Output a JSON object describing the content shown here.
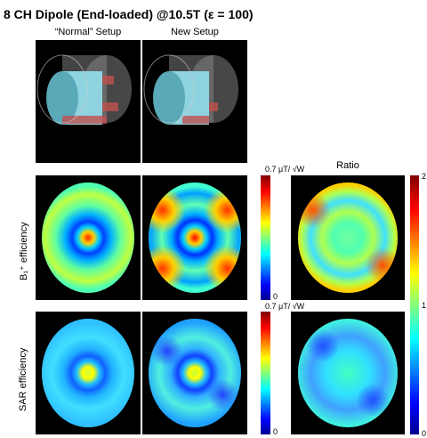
{
  "header": {
    "title": "8 CH Dipole (End-loaded) @10.5T (ε = 100)"
  },
  "columns": [
    "“Normal” Setup",
    "New Setup",
    "Ratio"
  ],
  "rows": [
    "B₁⁺ efficiency",
    "SAR efficiency"
  ],
  "colorbars": {
    "b1": {
      "max": "0.7 μT/ √W",
      "min": "0"
    },
    "sar": {
      "max": "0.7 μT/ √W",
      "min": "0"
    },
    "ratio": {
      "max": "2",
      "mid": "1",
      "min": "0"
    }
  }
}
